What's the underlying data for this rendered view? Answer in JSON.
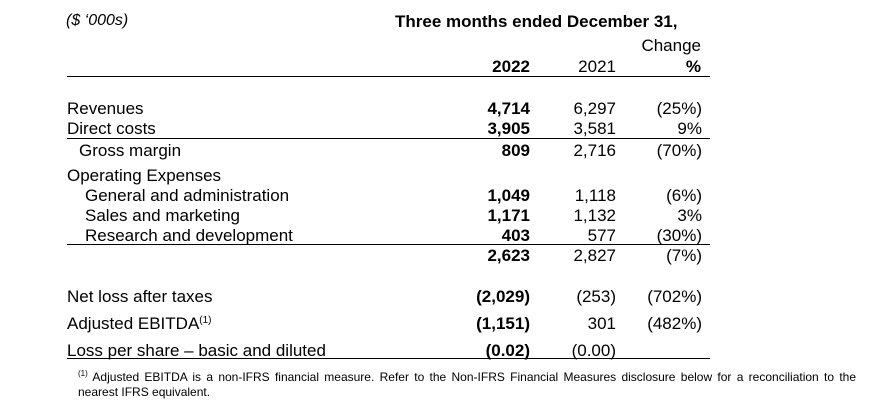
{
  "units": "($ ‘000s)",
  "period": "Three months ended December 31,",
  "columns": {
    "change_line1": "Change",
    "c1": "2022",
    "c2": "2021",
    "c3": "%"
  },
  "rows": [
    {
      "label": "Revenues",
      "c1": "4,714",
      "c2": "6,297",
      "c3": "(25%)"
    },
    {
      "label": "Direct costs",
      "c1": "3,905",
      "c2": "3,581",
      "c3": "9%"
    },
    {
      "label": "Gross margin",
      "c1": "809",
      "c2": "2,716",
      "c3": "(70%)"
    },
    {
      "label": "Operating Expenses"
    },
    {
      "label": "General and administration",
      "c1": "1,049",
      "c2": "1,118",
      "c3": "(6%)"
    },
    {
      "label": "Sales and marketing",
      "c1": "1,171",
      "c2": "1,132",
      "c3": "3%"
    },
    {
      "label": "Research and development",
      "c1": "403",
      "c2": "577",
      "c3": "(30%)"
    },
    {
      "label": "",
      "c1": "2,623",
      "c2": "2,827",
      "c3": "(7%)"
    },
    {
      "label": "Net loss after taxes",
      "c1": "(2,029)",
      "c2": "(253)",
      "c3": "(702%)"
    },
    {
      "label": "Adjusted EBITDA",
      "sup": "(1)",
      "c1": "(1,151)",
      "c2": "301",
      "c3": "(482%)"
    },
    {
      "label": "Loss per share – basic and diluted",
      "c1": "(0.02)",
      "c2": "(0.00)",
      "c3": ""
    }
  ],
  "footnote": {
    "marker": "(1)",
    "text": "Adjusted EBITDA is a non-IFRS financial measure. Refer to the Non-IFRS Financial Measures disclosure below for a reconciliation to the nearest IFRS equivalent."
  }
}
